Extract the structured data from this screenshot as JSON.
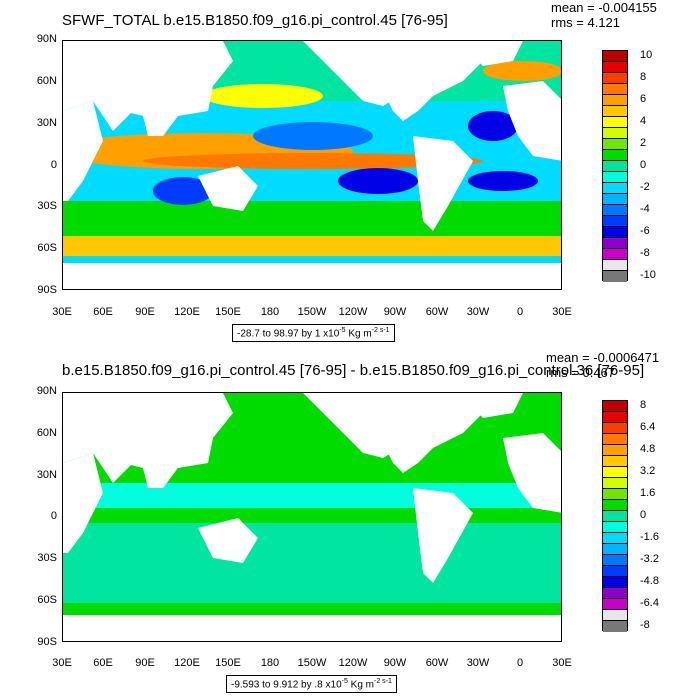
{
  "panels": [
    {
      "title": "SFWF_TOTAL b.e15.B1850.f09_g16.pi_control.45 [76-95]",
      "mean": "mean = -0.004155",
      "rms": "rms = 4.121",
      "range": "-28.7 to 98.97 by 1 x10",
      "range_unit": "Kg m",
      "range_exp1": "-5",
      "range_exp2": "-2 s-1",
      "colorbar_labels": [
        "10",
        "8",
        "6",
        "4",
        "2",
        "0",
        "-2",
        "-4",
        "-6",
        "-8",
        "-10"
      ],
      "colorbar_colors": [
        "#c00000",
        "#e60000",
        "#ff3c00",
        "#ff7800",
        "#ffa000",
        "#ffc800",
        "#ffff00",
        "#d2ff00",
        "#6ee600",
        "#00dc00",
        "#00e6a0",
        "#00ffdc",
        "#00dcff",
        "#00b4ff",
        "#0078ff",
        "#003cff",
        "#0000e6",
        "#8c00c8",
        "#c800c8",
        "#e6e6e6",
        "#787878"
      ]
    },
    {
      "title": "b.e15.B1850.f09_g16.pi_control.45 [76-95] - b.e15.B1850.f09_g16.pi_control.36 [76-95]",
      "mean": "mean = -0.0006471",
      "rms": "rms = 0.467",
      "range": "-9.593 to 9.912 by .8 x10",
      "range_unit": "Kg m",
      "range_exp1": "-5",
      "range_exp2": "-2 s-1",
      "colorbar_labels": [
        "8",
        "6.4",
        "4.8",
        "3.2",
        "1.6",
        "0",
        "-1.6",
        "-3.2",
        "-4.8",
        "-6.4",
        "-8"
      ],
      "colorbar_colors": [
        "#c00000",
        "#e60000",
        "#ff3c00",
        "#ff7800",
        "#ffa000",
        "#ffc800",
        "#ffff00",
        "#d2ff00",
        "#6ee600",
        "#00dc00",
        "#00e6a0",
        "#00ffdc",
        "#00dcff",
        "#00b4ff",
        "#0078ff",
        "#003cff",
        "#0000e6",
        "#8c00c8",
        "#c800c8",
        "#e6e6e6",
        "#787878"
      ]
    }
  ],
  "lat_labels": [
    "90N",
    "60N",
    "30N",
    "0",
    "30S",
    "60S",
    "90S"
  ],
  "lon_labels": [
    "30E",
    "60E",
    "90E",
    "120E",
    "150E",
    "180",
    "150W",
    "120W",
    "90W",
    "60W",
    "30W",
    "0",
    "30E"
  ],
  "palette": {
    "land": "#ffffff",
    "ocean_base_top": "#00e6a0",
    "ocean_base_bottom": "#00dc00"
  }
}
